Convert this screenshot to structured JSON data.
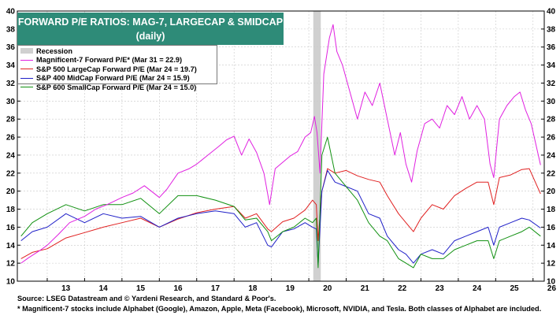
{
  "title": {
    "line1": "FORWARD P/E RATIOS: MAG-7, LARGECAP & SMIDCAP",
    "line2": "(daily)"
  },
  "legend": {
    "recession": "Recession",
    "mag7": "Magnificent-7 Forward P/E* (Mar 31 = 22.9)",
    "sp500": "S&P 500 LargeCap Forward P/E (Mar 24 = 19.7)",
    "sp400": "S&P 400 MidCap Forward P/E (Mar 24 = 15.9)",
    "sp600": "S&P 600 SmallCap Forward P/E (Mar 24 = 15.0)"
  },
  "footnotes": {
    "source": "Source: LSEG Datastream and © Yardeni Research, and Standard & Poor's.",
    "note": "* Magnificent-7 stocks include Alphabet (Google), Amazon, Apple, Meta (Facebook), Microsoft, NVIDIA, and Tesla. Both classes of Alphabet are included."
  },
  "colors": {
    "mag7": "#e020e0",
    "sp500": "#e02020",
    "sp400": "#2020c8",
    "sp600": "#109010",
    "recession": "#d0d0d0",
    "title_bg": "#2e8b78"
  },
  "chart_data": {
    "type": "line",
    "title": "FORWARD P/E RATIOS: MAG-7, LARGECAP & SMIDCAP (daily)",
    "xlabel": "",
    "ylabel": "",
    "xlim": [
      2012.2,
      2026.3
    ],
    "ylim": [
      10,
      40
    ],
    "yticks": [
      10,
      12,
      14,
      16,
      18,
      20,
      22,
      24,
      26,
      28,
      30,
      32,
      34,
      36,
      38,
      40
    ],
    "xtick_labels": [
      "13",
      "14",
      "15",
      "16",
      "17",
      "18",
      "19",
      "20",
      "21",
      "22",
      "23",
      "24",
      "25",
      "26"
    ],
    "xtick_positions": [
      2013,
      2014,
      2015,
      2016,
      2017,
      2018,
      2019,
      2020,
      2021,
      2022,
      2023,
      2024,
      2025,
      2026
    ],
    "grid": true,
    "legend_position": "top-left",
    "recession": [
      2020.12,
      2020.32
    ],
    "series": [
      {
        "name": "Magnificent-7 Forward P/E* (Mar 31 = 22.9)",
        "color": "mag7",
        "x": [
          2012.3,
          2012.5,
          2012.8,
          2013.0,
          2013.3,
          2013.6,
          2014.0,
          2014.3,
          2014.6,
          2015.0,
          2015.3,
          2015.6,
          2016.0,
          2016.2,
          2016.5,
          2016.8,
          2017.0,
          2017.3,
          2017.6,
          2017.8,
          2018.0,
          2018.2,
          2018.4,
          2018.6,
          2018.8,
          2018.95,
          2019.1,
          2019.3,
          2019.5,
          2019.7,
          2019.9,
          2020.05,
          2020.15,
          2020.22,
          2020.3,
          2020.4,
          2020.55,
          2020.65,
          2020.75,
          2020.9,
          2021.1,
          2021.3,
          2021.5,
          2021.7,
          2021.9,
          2022.1,
          2022.3,
          2022.45,
          2022.6,
          2022.75,
          2022.9,
          2023.1,
          2023.3,
          2023.5,
          2023.7,
          2023.9,
          2024.1,
          2024.3,
          2024.5,
          2024.7,
          2024.85,
          2024.95,
          2025.1,
          2025.3,
          2025.5,
          2025.65,
          2025.8,
          2025.95,
          2026.2
        ],
        "y": [
          12.0,
          12.6,
          13.4,
          14.0,
          15.2,
          16.5,
          17.2,
          18.0,
          18.5,
          19.3,
          19.8,
          20.6,
          19.3,
          20.2,
          22.0,
          22.5,
          23.0,
          24.0,
          25.0,
          25.7,
          26.1,
          24.0,
          25.8,
          24.3,
          22.0,
          18.5,
          22.5,
          23.2,
          23.9,
          24.4,
          26.0,
          26.5,
          28.3,
          26.5,
          22.0,
          33.0,
          37.0,
          38.5,
          35.5,
          34.0,
          31.0,
          28.0,
          31.0,
          29.5,
          32.0,
          28.0,
          24.0,
          26.5,
          23.0,
          21.0,
          24.5,
          27.5,
          28.0,
          27.0,
          29.5,
          28.5,
          30.5,
          28.0,
          29.5,
          28.0,
          23.0,
          21.5,
          28.0,
          29.5,
          30.5,
          31.0,
          29.0,
          27.5,
          22.9
        ]
      },
      {
        "name": "S&P 500 LargeCap Forward P/E (Mar 24 = 19.7)",
        "color": "sp500",
        "x": [
          2012.3,
          2012.6,
          2013.0,
          2013.5,
          2014.0,
          2014.5,
          2015.0,
          2015.5,
          2016.0,
          2016.5,
          2017.0,
          2017.5,
          2018.0,
          2018.3,
          2018.6,
          2018.9,
          2019.0,
          2019.3,
          2019.6,
          2019.9,
          2020.1,
          2020.2,
          2020.25,
          2020.35,
          2020.5,
          2020.7,
          2021.0,
          2021.3,
          2021.6,
          2021.9,
          2022.1,
          2022.4,
          2022.6,
          2022.8,
          2023.0,
          2023.3,
          2023.6,
          2023.9,
          2024.2,
          2024.5,
          2024.8,
          2024.95,
          2025.1,
          2025.4,
          2025.7,
          2025.9,
          2026.2
        ],
        "y": [
          12.5,
          13.2,
          13.6,
          14.8,
          15.4,
          16.0,
          16.5,
          17.0,
          16.0,
          16.9,
          17.6,
          18.0,
          18.3,
          17.0,
          17.5,
          15.8,
          15.5,
          16.6,
          17.0,
          17.9,
          19.0,
          18.5,
          14.5,
          20.0,
          22.5,
          22.0,
          22.3,
          21.7,
          21.3,
          21.0,
          19.5,
          17.5,
          16.5,
          15.5,
          17.0,
          18.5,
          18.0,
          19.5,
          20.3,
          21.0,
          21.0,
          18.5,
          21.5,
          21.8,
          22.4,
          22.5,
          19.7
        ]
      },
      {
        "name": "S&P 400 MidCap Forward P/E (Mar 24 = 15.9)",
        "color": "sp400",
        "x": [
          2012.3,
          2012.6,
          2013.0,
          2013.5,
          2014.0,
          2014.5,
          2015.0,
          2015.5,
          2016.0,
          2016.5,
          2017.0,
          2017.5,
          2018.0,
          2018.3,
          2018.6,
          2018.9,
          2019.0,
          2019.3,
          2019.6,
          2019.9,
          2020.1,
          2020.2,
          2020.25,
          2020.35,
          2020.5,
          2020.7,
          2021.0,
          2021.3,
          2021.6,
          2021.9,
          2022.1,
          2022.4,
          2022.6,
          2022.8,
          2023.0,
          2023.3,
          2023.6,
          2023.9,
          2024.2,
          2024.5,
          2024.8,
          2024.95,
          2025.1,
          2025.4,
          2025.7,
          2025.9,
          2026.2
        ],
        "y": [
          14.5,
          15.5,
          16.0,
          17.5,
          16.5,
          17.5,
          17.0,
          17.2,
          16.0,
          17.0,
          17.5,
          17.8,
          17.5,
          16.0,
          16.5,
          14.0,
          13.8,
          15.5,
          15.8,
          16.5,
          16.0,
          15.8,
          11.8,
          20.0,
          22.3,
          21.0,
          20.5,
          20.0,
          17.5,
          17.0,
          15.0,
          13.5,
          13.0,
          12.0,
          13.0,
          13.5,
          13.0,
          14.5,
          15.0,
          15.5,
          16.0,
          14.0,
          16.0,
          16.5,
          17.0,
          16.8,
          15.9
        ]
      },
      {
        "name": "S&P 600 SmallCap Forward P/E (Mar 24 = 15.0)",
        "color": "sp600",
        "x": [
          2012.3,
          2012.6,
          2013.0,
          2013.5,
          2014.0,
          2014.5,
          2015.0,
          2015.5,
          2016.0,
          2016.5,
          2017.0,
          2017.5,
          2018.0,
          2018.3,
          2018.6,
          2018.9,
          2019.0,
          2019.3,
          2019.6,
          2019.9,
          2020.1,
          2020.2,
          2020.25,
          2020.35,
          2020.5,
          2020.7,
          2021.0,
          2021.3,
          2021.6,
          2021.9,
          2022.1,
          2022.4,
          2022.6,
          2022.8,
          2023.0,
          2023.3,
          2023.6,
          2023.9,
          2024.2,
          2024.5,
          2024.8,
          2024.95,
          2025.1,
          2025.4,
          2025.7,
          2025.9,
          2026.2
        ],
        "y": [
          15.0,
          16.5,
          17.5,
          18.5,
          17.8,
          18.5,
          18.5,
          19.2,
          17.5,
          19.5,
          19.5,
          19.0,
          18.3,
          16.8,
          17.0,
          15.5,
          14.5,
          15.5,
          16.0,
          17.0,
          16.5,
          17.0,
          11.5,
          24.0,
          26.0,
          22.0,
          20.5,
          19.0,
          16.5,
          15.0,
          14.5,
          12.5,
          12.0,
          11.5,
          13.0,
          12.5,
          12.5,
          13.5,
          14.0,
          14.5,
          14.5,
          12.5,
          14.5,
          15.0,
          15.5,
          16.0,
          15.0
        ]
      }
    ]
  }
}
